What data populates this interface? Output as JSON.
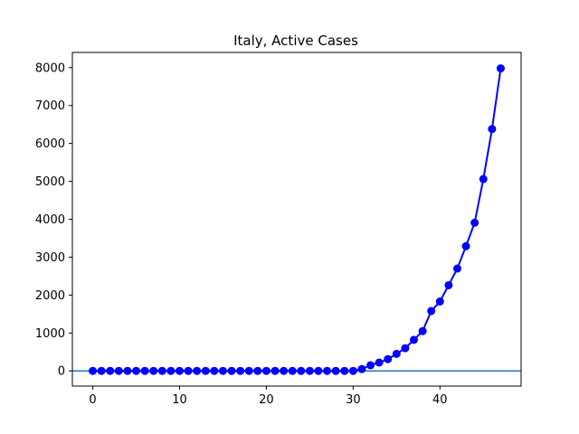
{
  "chart_data": {
    "type": "line",
    "title": "Italy, Active Cases",
    "xlabel": "",
    "ylabel": "",
    "xlim": [
      -2.35,
      49.35
    ],
    "ylim": [
      -400,
      8400
    ],
    "x_ticks": [
      0,
      10,
      20,
      30,
      40
    ],
    "y_ticks": [
      0,
      1000,
      2000,
      3000,
      4000,
      5000,
      6000,
      7000,
      8000
    ],
    "grid": false,
    "legend": "none",
    "horizontal_line": {
      "y": 0,
      "color": "#1f77b4"
    },
    "series": [
      {
        "color": "#0000ff",
        "marker": "circle",
        "x": [
          0,
          1,
          2,
          3,
          4,
          5,
          6,
          7,
          8,
          9,
          10,
          11,
          12,
          13,
          14,
          15,
          16,
          17,
          18,
          19,
          20,
          21,
          22,
          23,
          24,
          25,
          26,
          27,
          28,
          29,
          30,
          31,
          32,
          33,
          34,
          35,
          36,
          37,
          38,
          39,
          40,
          41,
          42,
          43,
          44,
          45,
          46,
          47
        ],
        "values": [
          0,
          0,
          0,
          0,
          0,
          0,
          0,
          0,
          0,
          0,
          0,
          0,
          0,
          0,
          0,
          0,
          0,
          0,
          0,
          0,
          0,
          0,
          0,
          0,
          0,
          0,
          0,
          0,
          0,
          0,
          0,
          50,
          150,
          220,
          310,
          450,
          600,
          820,
          1050,
          1580,
          1830,
          2260,
          2700,
          3290,
          3910,
          5060,
          6380,
          7980
        ]
      }
    ]
  }
}
